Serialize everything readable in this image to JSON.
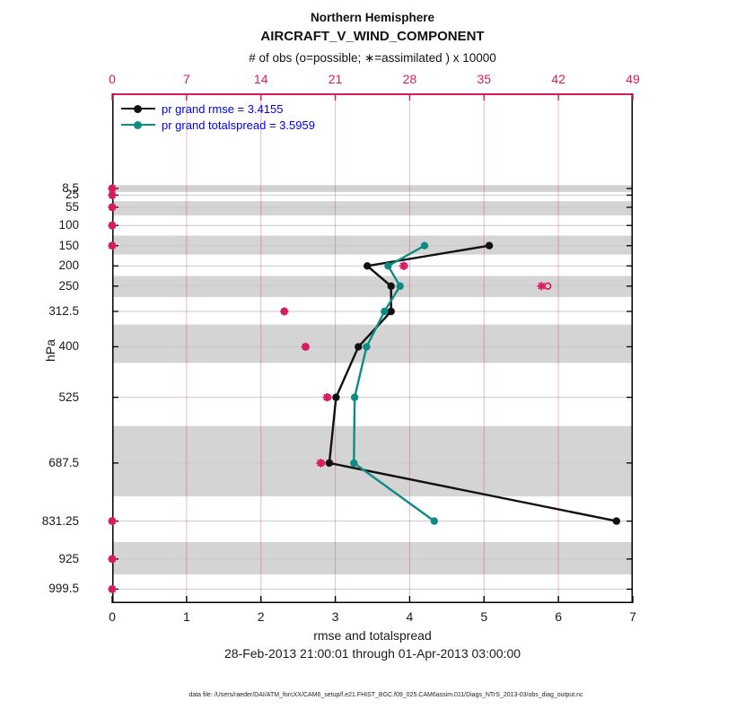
{
  "colors": {
    "obs_pink": "#d81b60",
    "grid_pink": "rgba(216,27,96,0.32)",
    "band_gray": "#d4d4d4",
    "grid_gray": "#c9c9c9",
    "axis_black": "#000000",
    "rmse_black": "#111111",
    "spread_teal": "#0f8b84",
    "legend_text_blue": "#0000ee"
  },
  "legend": {
    "items": [
      {
        "label": "pr grand rmse = 3.4155",
        "color": "#111111"
      },
      {
        "label": "pr grand totalspread = 3.5959",
        "color": "#0f8b84"
      }
    ]
  },
  "footer": {
    "timespan": "28-Feb-2013 21:00:01 through 01-Apr-2013 03:00:00",
    "data_file": "data file: /Users/raeder/DAI/ATM_forcXX/CAM6_setup/f.e21.FHIST_BGC.f09_025.CAM6assim.011/Diags_NTrS_2013-03/obs_diag_output.nc"
  },
  "chart_data": {
    "type": "line",
    "orientation": "vertical-profile",
    "title": "Northern Hemisphere",
    "subtitle": "AIRCRAFT_V_WIND_COMPONENT",
    "x_bottom_axis": {
      "label": "rmse and totalspread",
      "range": [
        0,
        7
      ],
      "ticks": [
        0,
        1,
        2,
        3,
        4,
        5,
        6,
        7
      ]
    },
    "x_top_axis": {
      "label": "# of obs (o=possible; ∗=assimilated ) x 10000",
      "range": [
        0,
        49
      ],
      "ticks": [
        0,
        7,
        14,
        21,
        28,
        35,
        42,
        49
      ]
    },
    "y_axis": {
      "label": "hPa",
      "direction": "increasing-downward",
      "ticks": [
        8.5,
        25,
        55,
        100,
        150,
        200,
        250,
        312.5,
        400,
        525,
        687.5,
        831.25,
        925,
        999.5
      ]
    },
    "series": [
      {
        "name": "pr grand rmse",
        "summary_value": 3.4155,
        "color": "#111111",
        "points": [
          {
            "hpa": 150,
            "value": 5.07
          },
          {
            "hpa": 200,
            "value": 3.43
          },
          {
            "hpa": 250,
            "value": 3.75
          },
          {
            "hpa": 312.5,
            "value": 3.75
          },
          {
            "hpa": 400,
            "value": 3.31
          },
          {
            "hpa": 525,
            "value": 3.01
          },
          {
            "hpa": 687.5,
            "value": 2.92
          },
          {
            "hpa": 831.25,
            "value": 6.78
          }
        ]
      },
      {
        "name": "pr grand totalspread",
        "summary_value": 3.5959,
        "color": "#0f8b84",
        "points": [
          {
            "hpa": 150,
            "value": 4.2
          },
          {
            "hpa": 200,
            "value": 3.71
          },
          {
            "hpa": 250,
            "value": 3.87
          },
          {
            "hpa": 312.5,
            "value": 3.66
          },
          {
            "hpa": 400,
            "value": 3.42
          },
          {
            "hpa": 525,
            "value": 3.26
          },
          {
            "hpa": 687.5,
            "value": 3.25
          },
          {
            "hpa": 831.25,
            "value": 4.33
          }
        ]
      }
    ],
    "obs_counts_x10000": [
      {
        "hpa": 8.5,
        "possible": 0,
        "assimilated": 0
      },
      {
        "hpa": 25,
        "possible": 0,
        "assimilated": 0
      },
      {
        "hpa": 55,
        "possible": 0,
        "assimilated": 0
      },
      {
        "hpa": 100,
        "possible": 0,
        "assimilated": 0
      },
      {
        "hpa": 150,
        "possible": 0,
        "assimilated": 0
      },
      {
        "hpa": 200,
        "possible": 27.5,
        "assimilated": 27.4
      },
      {
        "hpa": 250,
        "possible": 41.0,
        "assimilated": 40.4
      },
      {
        "hpa": 312.5,
        "possible": 16.2,
        "assimilated": 16.2
      },
      {
        "hpa": 400,
        "possible": 18.2,
        "assimilated": 18.2
      },
      {
        "hpa": 525,
        "possible": 20.3,
        "assimilated": 20.2
      },
      {
        "hpa": 687.5,
        "possible": 19.7,
        "assimilated": 19.6
      },
      {
        "hpa": 831.25,
        "possible": 0,
        "assimilated": 0
      },
      {
        "hpa": 925,
        "possible": 0,
        "assimilated": 0
      },
      {
        "hpa": 999.5,
        "possible": 0,
        "assimilated": 0
      }
    ],
    "shaded_layers_hpa": [
      [
        0,
        17
      ],
      [
        40,
        75
      ],
      [
        125,
        172
      ],
      [
        225,
        277
      ],
      [
        345,
        440
      ],
      [
        596,
        770
      ],
      [
        883,
        963
      ]
    ],
    "grid": {
      "pink_vertical_at_top_ticks": [
        7,
        14,
        21,
        28,
        35,
        42
      ],
      "gray_horizontal_at_y_ticks": true
    }
  }
}
